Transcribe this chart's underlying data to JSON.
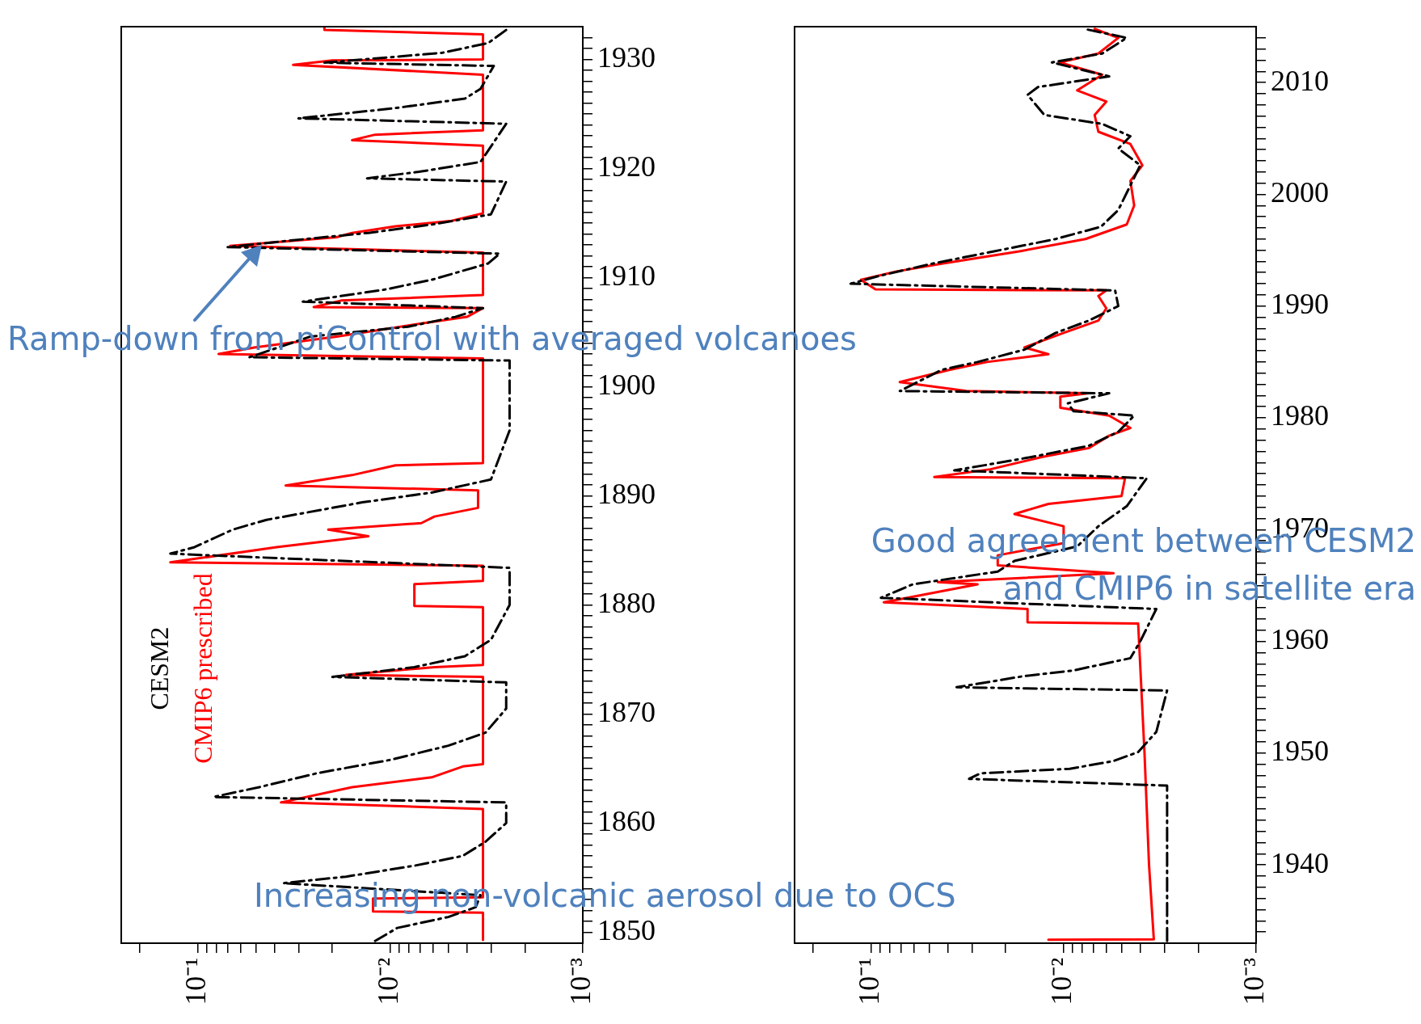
{
  "chart_data": [
    {
      "type": "line",
      "orientation": "horizontal",
      "log": "x",
      "grid": false,
      "marker": "none",
      "legend": "bottom left",
      "xlim": [
        0.25,
        0.001
      ],
      "xticks": [
        {
          "value": 0.2,
          "label": null
        },
        {
          "value": 0.1,
          "label": "10⁻¹"
        },
        {
          "value": 0.09,
          "label": null
        },
        {
          "value": 0.08,
          "label": null
        },
        {
          "value": 0.07,
          "label": null
        },
        {
          "value": 0.06,
          "label": null
        },
        {
          "value": 0.05,
          "label": null
        },
        {
          "value": 0.04,
          "label": null
        },
        {
          "value": 0.03,
          "label": null
        },
        {
          "value": 0.02,
          "label": null
        },
        {
          "value": 0.01,
          "label": "10⁻²"
        },
        {
          "value": 0.009,
          "label": null
        },
        {
          "value": 0.008,
          "label": null
        },
        {
          "value": 0.007,
          "label": null
        },
        {
          "value": 0.006,
          "label": null
        },
        {
          "value": 0.005,
          "label": null
        },
        {
          "value": 0.004,
          "label": null
        },
        {
          "value": 0.003,
          "label": null
        },
        {
          "value": 0.002,
          "label": null
        },
        {
          "value": 0.001,
          "label": "10⁻³"
        }
      ],
      "ylim": [
        1849,
        1933
      ],
      "yticks": [
        1850,
        {
          "value": 1851,
          "label": null
        },
        {
          "value": 1852,
          "label": null
        },
        {
          "value": 1853,
          "label": null
        },
        {
          "value": 1854,
          "label": null
        },
        {
          "value": 1855,
          "label": null
        },
        {
          "value": 1856,
          "label": null
        },
        {
          "value": 1857,
          "label": null
        },
        {
          "value": 1858,
          "label": null
        },
        {
          "value": 1859,
          "label": null
        },
        1860,
        {
          "value": 1861,
          "label": null
        },
        {
          "value": 1862,
          "label": null
        },
        {
          "value": 1863,
          "label": null
        },
        {
          "value": 1864,
          "label": null
        },
        {
          "value": 1865,
          "label": null
        },
        {
          "value": 1866,
          "label": null
        },
        {
          "value": 1867,
          "label": null
        },
        {
          "value": 1868,
          "label": null
        },
        {
          "value": 1869,
          "label": null
        },
        1870,
        {
          "value": 1871,
          "label": null
        },
        {
          "value": 1872,
          "label": null
        },
        {
          "value": 1873,
          "label": null
        },
        {
          "value": 1874,
          "label": null
        },
        {
          "value": 1875,
          "label": null
        },
        {
          "value": 1876,
          "label": null
        },
        {
          "value": 1877,
          "label": null
        },
        {
          "value": 1878,
          "label": null
        },
        {
          "value": 1879,
          "label": null
        },
        1880,
        {
          "value": 1881,
          "label": null
        },
        {
          "value": 1882,
          "label": null
        },
        {
          "value": 1883,
          "label": null
        },
        {
          "value": 1884,
          "label": null
        },
        {
          "value": 1885,
          "label": null
        },
        {
          "value": 1886,
          "label": null
        },
        {
          "value": 1887,
          "label": null
        },
        {
          "value": 1888,
          "label": null
        },
        {
          "value": 1889,
          "label": null
        },
        1890,
        {
          "value": 1891,
          "label": null
        },
        {
          "value": 1892,
          "label": null
        },
        {
          "value": 1893,
          "label": null
        },
        {
          "value": 1894,
          "label": null
        },
        {
          "value": 1895,
          "label": null
        },
        {
          "value": 1896,
          "label": null
        },
        {
          "value": 1897,
          "label": null
        },
        {
          "value": 1898,
          "label": null
        },
        {
          "value": 1899,
          "label": null
        },
        1900,
        {
          "value": 1901,
          "label": null
        },
        {
          "value": 1902,
          "label": null
        },
        {
          "value": 1903,
          "label": null
        },
        {
          "value": 1904,
          "label": null
        },
        {
          "value": 1905,
          "label": null
        },
        {
          "value": 1906,
          "label": null
        },
        {
          "value": 1907,
          "label": null
        },
        {
          "value": 1908,
          "label": null
        },
        {
          "value": 1909,
          "label": null
        },
        1910,
        {
          "value": 1911,
          "label": null
        },
        {
          "value": 1912,
          "label": null
        },
        {
          "value": 1913,
          "label": null
        },
        {
          "value": 1914,
          "label": null
        },
        {
          "value": 1915,
          "label": null
        },
        {
          "value": 1916,
          "label": null
        },
        {
          "value": 1917,
          "label": null
        },
        {
          "value": 1918,
          "label": null
        },
        {
          "value": 1919,
          "label": null
        },
        1920,
        {
          "value": 1921,
          "label": null
        },
        {
          "value": 1922,
          "label": null
        },
        {
          "value": 1923,
          "label": null
        },
        {
          "value": 1924,
          "label": null
        },
        {
          "value": 1925,
          "label": null
        },
        {
          "value": 1926,
          "label": null
        },
        {
          "value": 1927,
          "label": null
        },
        {
          "value": 1928,
          "label": null
        },
        {
          "value": 1929,
          "label": null
        },
        1930,
        {
          "value": 1931,
          "label": null
        },
        {
          "value": 1932,
          "label": null
        }
      ],
      "annotations": [
        "Ramp-down from piControl with averaged volcanoes",
        "Increasing non-volcanic aerosol due to OCS"
      ],
      "series": [
        {
          "name": "CESM2",
          "color": "#000000",
          "line_style": "dashed",
          "x": [
            1849.2,
            1850.4,
            1851.4,
            1852.3,
            1853.4,
            1854.5,
            1855.1,
            1856.1,
            1857,
            1858.3,
            1860,
            1861.9,
            1862.4,
            1863.3,
            1864.6,
            1865.8,
            1867.1,
            1868.3,
            1870.5,
            1872.9,
            1873.4,
            1874.3,
            1875.3,
            1876.8,
            1880,
            1883.4,
            1884.7,
            1885.3,
            1886.9,
            1887.8,
            1889.4,
            1890.3,
            1891.5,
            1896,
            1902.4,
            1902.7,
            1904.6,
            1905.5,
            1906.4,
            1907.2,
            1907.8,
            1908.9,
            1909.8,
            1911.3,
            1912.2,
            1912.8,
            1913.4,
            1914.1,
            1914.9,
            1915.8,
            1918.8,
            1919.1,
            1919.7,
            1920.6,
            1924.1,
            1924.6,
            1925.5,
            1926.4,
            1927.3,
            1929.4,
            1929.7,
            1930.6,
            1931.5,
            1932.7
          ],
          "values": [
            0.012,
            0.0092,
            0.005,
            0.0036,
            0.0034,
            0.036,
            0.017,
            0.0075,
            0.0042,
            0.0032,
            0.0025,
            0.0025,
            0.083,
            0.048,
            0.0237,
            0.01,
            0.005,
            0.0032,
            0.0025,
            0.0025,
            0.02,
            0.0075,
            0.0041,
            0.003,
            0.0024,
            0.0024,
            0.139,
            0.104,
            0.066,
            0.044,
            0.014,
            0.0061,
            0.003,
            0.0024,
            0.0024,
            0.054,
            0.026,
            0.0081,
            0.0046,
            0.0033,
            0.0285,
            0.0107,
            0.0061,
            0.0031,
            0.0027,
            0.07,
            0.033,
            0.013,
            0.0059,
            0.003,
            0.0025,
            0.0132,
            0.0071,
            0.0034,
            0.0025,
            0.03,
            0.0098,
            0.0041,
            0.0034,
            0.0029,
            0.022,
            0.0054,
            0.0031,
            0.0025
          ]
        },
        {
          "name": "CMIP6 prescribed",
          "color": "#ff0000",
          "line_style": "solid",
          "x": [
            1849.3,
            1851.8,
            1851.9,
            1853.1,
            1853.2,
            1861.3,
            1861.9,
            1863.3,
            1864.2,
            1865.2,
            1865.4,
            1873.4,
            1873.6,
            1874.3,
            1874.5,
            1879.8,
            1879.9,
            1881.9,
            1882.2,
            1883.6,
            1883.9,
            1885.3,
            1886.3,
            1886.9,
            1887.5,
            1888.1,
            1888.9,
            1890.5,
            1890.95,
            1891.9,
            1892.8,
            1893,
            1902.6,
            1903,
            1903.6,
            1904.6,
            1905.8,
            1906.4,
            1907.2,
            1907.3,
            1907.9,
            1908.4,
            1912.3,
            1912.9,
            1913.7,
            1914.1,
            1914.7,
            1915.2,
            1915.9,
            1922.1,
            1922.6,
            1923.1,
            1923.5,
            1928.6,
            1929.5,
            1929.9,
            1930,
            1932.3,
            1932.7,
            1933
          ],
          "values": [
            0.0033,
            0.0033,
            0.0123,
            0.0123,
            0.0033,
            0.0033,
            0.037,
            0.0158,
            0.0061,
            0.0042,
            0.0033,
            0.0033,
            0.017,
            0.0059,
            0.0033,
            0.0033,
            0.0075,
            0.0075,
            0.0033,
            0.0033,
            0.139,
            0.039,
            0.013,
            0.021,
            0.0069,
            0.0059,
            0.0035,
            0.0035,
            0.035,
            0.0158,
            0.0094,
            0.0033,
            0.0033,
            0.078,
            0.051,
            0.019,
            0.0069,
            0.004,
            0.0033,
            0.025,
            0.018,
            0.0033,
            0.0033,
            0.068,
            0.019,
            0.0158,
            0.0094,
            0.0048,
            0.0033,
            0.0033,
            0.0158,
            0.012,
            0.0033,
            0.0033,
            0.032,
            0.02,
            0.0033,
            0.0033,
            0.022,
            0.022
          ]
        }
      ]
    },
    {
      "type": "line",
      "orientation": "horizontal",
      "log": "x",
      "grid": false,
      "marker": "none",
      "xlim": [
        0.25,
        0.001
      ],
      "xticks": [
        {
          "value": 0.2,
          "label": null
        },
        {
          "value": 0.1,
          "label": "10⁻¹"
        },
        {
          "value": 0.09,
          "label": null
        },
        {
          "value": 0.08,
          "label": null
        },
        {
          "value": 0.07,
          "label": null
        },
        {
          "value": 0.06,
          "label": null
        },
        {
          "value": 0.05,
          "label": null
        },
        {
          "value": 0.04,
          "label": null
        },
        {
          "value": 0.03,
          "label": null
        },
        {
          "value": 0.02,
          "label": null
        },
        {
          "value": 0.01,
          "label": "10⁻²"
        },
        {
          "value": 0.009,
          "label": null
        },
        {
          "value": 0.008,
          "label": null
        },
        {
          "value": 0.007,
          "label": null
        },
        {
          "value": 0.006,
          "label": null
        },
        {
          "value": 0.005,
          "label": null
        },
        {
          "value": 0.004,
          "label": null
        },
        {
          "value": 0.003,
          "label": null
        },
        {
          "value": 0.002,
          "label": null
        },
        {
          "value": 0.001,
          "label": "10⁻³"
        }
      ],
      "ylim": [
        1933,
        2015
      ],
      "yticks": [
        {
          "value": 1934,
          "label": null
        },
        {
          "value": 1935,
          "label": null
        },
        {
          "value": 1936,
          "label": null
        },
        {
          "value": 1937,
          "label": null
        },
        {
          "value": 1938,
          "label": null
        },
        {
          "value": 1939,
          "label": null
        },
        1940,
        {
          "value": 1941,
          "label": null
        },
        {
          "value": 1942,
          "label": null
        },
        {
          "value": 1943,
          "label": null
        },
        {
          "value": 1944,
          "label": null
        },
        {
          "value": 1945,
          "label": null
        },
        {
          "value": 1946,
          "label": null
        },
        {
          "value": 1947,
          "label": null
        },
        {
          "value": 1948,
          "label": null
        },
        {
          "value": 1949,
          "label": null
        },
        1950,
        {
          "value": 1951,
          "label": null
        },
        {
          "value": 1952,
          "label": null
        },
        {
          "value": 1953,
          "label": null
        },
        {
          "value": 1954,
          "label": null
        },
        {
          "value": 1955,
          "label": null
        },
        {
          "value": 1956,
          "label": null
        },
        {
          "value": 1957,
          "label": null
        },
        {
          "value": 1958,
          "label": null
        },
        {
          "value": 1959,
          "label": null
        },
        1960,
        {
          "value": 1961,
          "label": null
        },
        {
          "value": 1962,
          "label": null
        },
        {
          "value": 1963,
          "label": null
        },
        {
          "value": 1964,
          "label": null
        },
        {
          "value": 1965,
          "label": null
        },
        {
          "value": 1966,
          "label": null
        },
        {
          "value": 1967,
          "label": null
        },
        {
          "value": 1968,
          "label": null
        },
        {
          "value": 1969,
          "label": null
        },
        1970,
        {
          "value": 1971,
          "label": null
        },
        {
          "value": 1972,
          "label": null
        },
        {
          "value": 1973,
          "label": null
        },
        {
          "value": 1974,
          "label": null
        },
        {
          "value": 1975,
          "label": null
        },
        {
          "value": 1976,
          "label": null
        },
        {
          "value": 1977,
          "label": null
        },
        {
          "value": 1978,
          "label": null
        },
        {
          "value": 1979,
          "label": null
        },
        1980,
        {
          "value": 1981,
          "label": null
        },
        {
          "value": 1982,
          "label": null
        },
        {
          "value": 1983,
          "label": null
        },
        {
          "value": 1984,
          "label": null
        },
        {
          "value": 1985,
          "label": null
        },
        {
          "value": 1986,
          "label": null
        },
        {
          "value": 1987,
          "label": null
        },
        {
          "value": 1988,
          "label": null
        },
        {
          "value": 1989,
          "label": null
        },
        1990,
        {
          "value": 1991,
          "label": null
        },
        {
          "value": 1992,
          "label": null
        },
        {
          "value": 1993,
          "label": null
        },
        {
          "value": 1994,
          "label": null
        },
        {
          "value": 1995,
          "label": null
        },
        {
          "value": 1996,
          "label": null
        },
        {
          "value": 1997,
          "label": null
        },
        {
          "value": 1998,
          "label": null
        },
        {
          "value": 1999,
          "label": null
        },
        2000,
        {
          "value": 2001,
          "label": null
        },
        {
          "value": 2002,
          "label": null
        },
        {
          "value": 2003,
          "label": null
        },
        {
          "value": 2004,
          "label": null
        },
        {
          "value": 2005,
          "label": null
        },
        {
          "value": 2006,
          "label": null
        },
        {
          "value": 2007,
          "label": null
        },
        {
          "value": 2008,
          "label": null
        },
        {
          "value": 2009,
          "label": null
        },
        2010,
        {
          "value": 2011,
          "label": null
        },
        {
          "value": 2012,
          "label": null
        },
        {
          "value": 2013,
          "label": null
        },
        {
          "value": 2014,
          "label": null
        }
      ],
      "annotations": [
        "Good agreement between CESM2 and CMIP6 in satellite era"
      ],
      "series": [
        {
          "color": "#000000",
          "line_style": "dashed",
          "x": [
            1933.2,
            1947.1,
            1947.7,
            1948.2,
            1948.6,
            1949.3,
            1950.1,
            1951.9,
            1955.6,
            1955.9,
            1956.9,
            1957.4,
            1958.5,
            1960,
            1962.9,
            1963.9,
            1965.1,
            1966.25,
            1967.2,
            1968.5,
            1970.3,
            1972.1,
            1974.6,
            1975.3,
            1975.8,
            1976.5,
            1977.5,
            1978.75,
            1980.2,
            1980.6,
            1981.3,
            1982.2,
            1982.4,
            1984.3,
            1985,
            1986.1,
            1987.6,
            1988.7,
            1990,
            1991.4,
            1992,
            1992.7,
            1993.8,
            1994.9,
            1996,
            1997.1,
            1998.6,
            2000.8,
            2002.6,
            2004.1,
            2005.2,
            2006.3,
            2007.1,
            2008.9,
            2009.6,
            2010.55,
            2011.8,
            2012.6,
            2014,
            2014.8
          ],
          "values": [
            0.0029,
            0.0029,
            0.031,
            0.027,
            0.0093,
            0.0055,
            0.0041,
            0.0033,
            0.0029,
            0.036,
            0.016,
            0.0089,
            0.0045,
            0.004,
            0.0033,
            0.089,
            0.061,
            0.022,
            0.018,
            0.0085,
            0.0066,
            0.0047,
            0.0037,
            0.037,
            0.025,
            0.0147,
            0.0074,
            0.0052,
            0.0043,
            0.0089,
            0.0095,
            0.0058,
            0.071,
            0.043,
            0.028,
            0.016,
            0.011,
            0.0074,
            0.0052,
            0.0054,
            0.128,
            0.091,
            0.048,
            0.023,
            0.011,
            0.0064,
            0.0052,
            0.0045,
            0.004,
            0.0052,
            0.0045,
            0.0063,
            0.0126,
            0.0154,
            0.0136,
            0.0058,
            0.0115,
            0.0063,
            0.0047,
            0.0078
          ]
        },
        {
          "color": "#ff0000",
          "line_style": "solid",
          "x": [
            1933.3,
            1933.35,
            1940,
            1950,
            1961.6,
            1961.7,
            1962.9,
            1963.5,
            1965.1,
            1965.3,
            1966.1,
            1966.8,
            1967.7,
            1968.8,
            1970.3,
            1971.4,
            1972.3,
            1973,
            1974.6,
            1974.7,
            1975.4,
            1976.5,
            1977.3,
            1978.4,
            1979.1,
            1980.2,
            1980.9,
            1981.9,
            1982.2,
            1982.4,
            1983.2,
            1984.3,
            1985,
            1985.7,
            1986.3,
            1987.6,
            1988.7,
            1989.8,
            1990.9,
            1991.4,
            1991.5,
            1992.35,
            1993.1,
            1993.8,
            1994.9,
            1996,
            1997.3,
            1999,
            2001.2,
            2002.6,
            2004.5,
            2005.6,
            2007.1,
            2008.3,
            2009.3,
            2010.7,
            2011.8,
            2012.6,
            2014,
            2014.8
          ],
          "values": [
            0.012,
            0.0034,
            0.0036,
            0.0038,
            0.0041,
            0.0154,
            0.0154,
            0.086,
            0.028,
            0.045,
            0.0055,
            0.022,
            0.022,
            0.01,
            0.01,
            0.018,
            0.012,
            0.005,
            0.0048,
            0.047,
            0.024,
            0.013,
            0.0074,
            0.0058,
            0.0045,
            0.0058,
            0.0104,
            0.0104,
            0.0074,
            0.032,
            0.071,
            0.039,
            0.025,
            0.012,
            0.016,
            0.01,
            0.0066,
            0.006,
            0.0066,
            0.006,
            0.095,
            0.113,
            0.074,
            0.043,
            0.017,
            0.0077,
            0.0047,
            0.0043,
            0.0045,
            0.0039,
            0.0045,
            0.0066,
            0.0069,
            0.006,
            0.0085,
            0.0063,
            0.0105,
            0.0066,
            0.0052,
            0.0069
          ]
        }
      ]
    }
  ]
}
